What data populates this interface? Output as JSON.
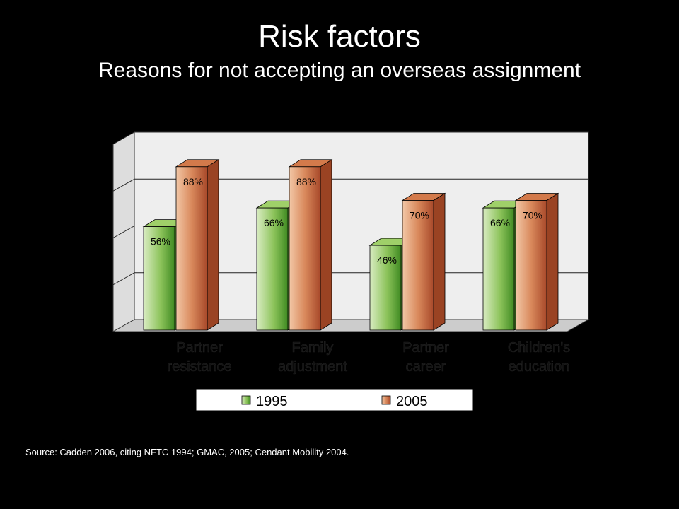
{
  "slide": {
    "title": "Risk factors",
    "subtitle": "Reasons for not accepting an overseas assignment",
    "source": "Source: Cadden 2006, citing NFTC 1994; GMAC, 2005; Cendant Mobility 2004."
  },
  "chart_data": {
    "type": "bar",
    "categories": [
      "Partner\nresistance",
      "Family\nadjustment",
      "Partner\ncareer",
      "Children's\neducation"
    ],
    "series": [
      {
        "name": "1995",
        "values": [
          56,
          66,
          46,
          66
        ],
        "labels": [
          "56%",
          "66%",
          "46%",
          "66%"
        ],
        "color": "#7fb84a"
      },
      {
        "name": "2005",
        "values": [
          88,
          88,
          70,
          70
        ],
        "labels": [
          "88%",
          "88%",
          "70%",
          "70%"
        ],
        "color": "#c8693c"
      }
    ],
    "ylim": [
      0,
      100
    ],
    "grid": true,
    "legend": "bottom",
    "colors": {
      "plot_wall": "#eeeeee",
      "plot_side": "#dddddd",
      "floor": "#cccccc",
      "label_text": "#000000"
    }
  }
}
